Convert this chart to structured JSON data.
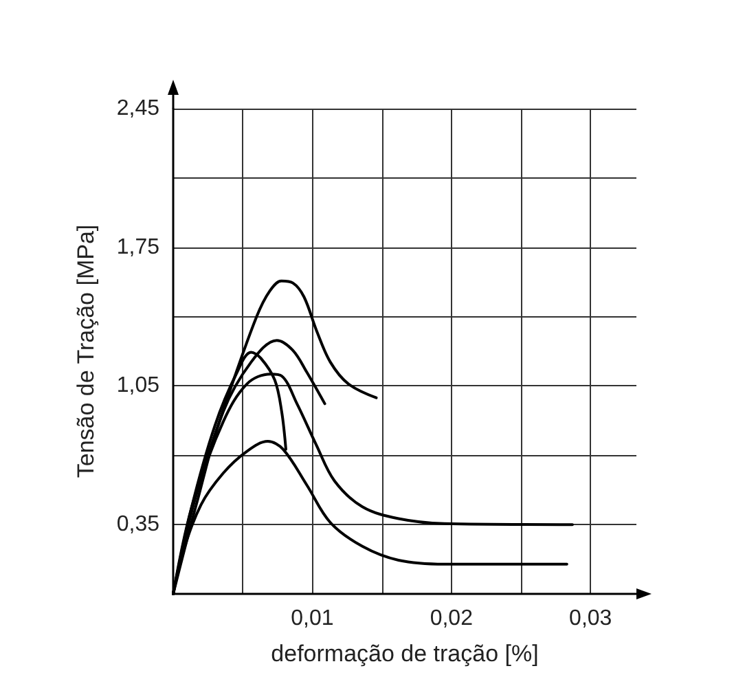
{
  "chart_data": {
    "type": "line",
    "xlabel": "deformação de tração [%]",
    "ylabel": "Tensão de Tração [MPa]",
    "xlim": [
      0,
      0.0333
    ],
    "ylim": [
      0,
      2.45
    ],
    "xticks": [
      {
        "value": 0.005,
        "label": null
      },
      {
        "value": 0.01,
        "label": "0,01"
      },
      {
        "value": 0.015,
        "label": null
      },
      {
        "value": 0.02,
        "label": "0,02"
      },
      {
        "value": 0.025,
        "label": null
      },
      {
        "value": 0.03,
        "label": "0,03"
      }
    ],
    "yticks": [
      {
        "value": 0.35,
        "label": "0,35"
      },
      {
        "value": 0.7,
        "label": null
      },
      {
        "value": 1.05,
        "label": "1,05"
      },
      {
        "value": 1.4,
        "label": null
      },
      {
        "value": 1.75,
        "label": "1,75"
      },
      {
        "value": 2.1,
        "label": null
      },
      {
        "value": 2.45,
        "label": "2,45"
      }
    ],
    "grid": true,
    "marker": "none",
    "line_style": "solid",
    "series": [
      {
        "color": "#000000",
        "x": [
          0,
          0.0013,
          0.004,
          0.006,
          0.00695,
          0.00778,
          0.0086,
          0.0094,
          0.0103,
          0.0113,
          0.0126,
          0.0146
        ],
        "values": [
          0,
          0.43,
          1.01,
          1.4,
          1.53,
          1.58,
          1.57,
          1.5,
          1.33,
          1.17,
          1.06,
          0.99
        ]
      },
      {
        "color": "#000000",
        "x": [
          0,
          0.00166,
          0.0036,
          0.0056,
          0.00745,
          0.0086,
          0.0096,
          0.0109
        ],
        "values": [
          0,
          0.45,
          0.92,
          1.17,
          1.28,
          1.23,
          1.12,
          0.96
        ]
      },
      {
        "color": "#000000",
        "x": [
          0,
          0.0013,
          0.003,
          0.0046,
          0.0056,
          0.0063,
          0.0073,
          0.0078,
          0.0081
        ],
        "values": [
          0,
          0.43,
          0.85,
          1.12,
          1.22,
          1.19,
          1.08,
          0.92,
          0.73
        ]
      },
      {
        "color": "#000000",
        "x": [
          0,
          0.00066,
          0.002,
          0.0036,
          0.0053,
          0.0068,
          0.0079,
          0.0096,
          0.0113,
          0.0136,
          0.0162,
          0.0195,
          0.0283
        ],
        "values": [
          0,
          0.2,
          0.45,
          0.61,
          0.72,
          0.77,
          0.73,
          0.55,
          0.36,
          0.24,
          0.17,
          0.15,
          0.15
        ]
      },
      {
        "color": "#000000",
        "x": [
          0,
          0.00166,
          0.0036,
          0.0053,
          0.007,
          0.0078,
          0.0089,
          0.0103,
          0.0116,
          0.0136,
          0.0162,
          0.0195,
          0.0287
        ],
        "values": [
          0,
          0.5,
          0.87,
          1.06,
          1.11,
          1.1,
          0.96,
          0.75,
          0.57,
          0.44,
          0.38,
          0.355,
          0.35
        ]
      }
    ]
  }
}
